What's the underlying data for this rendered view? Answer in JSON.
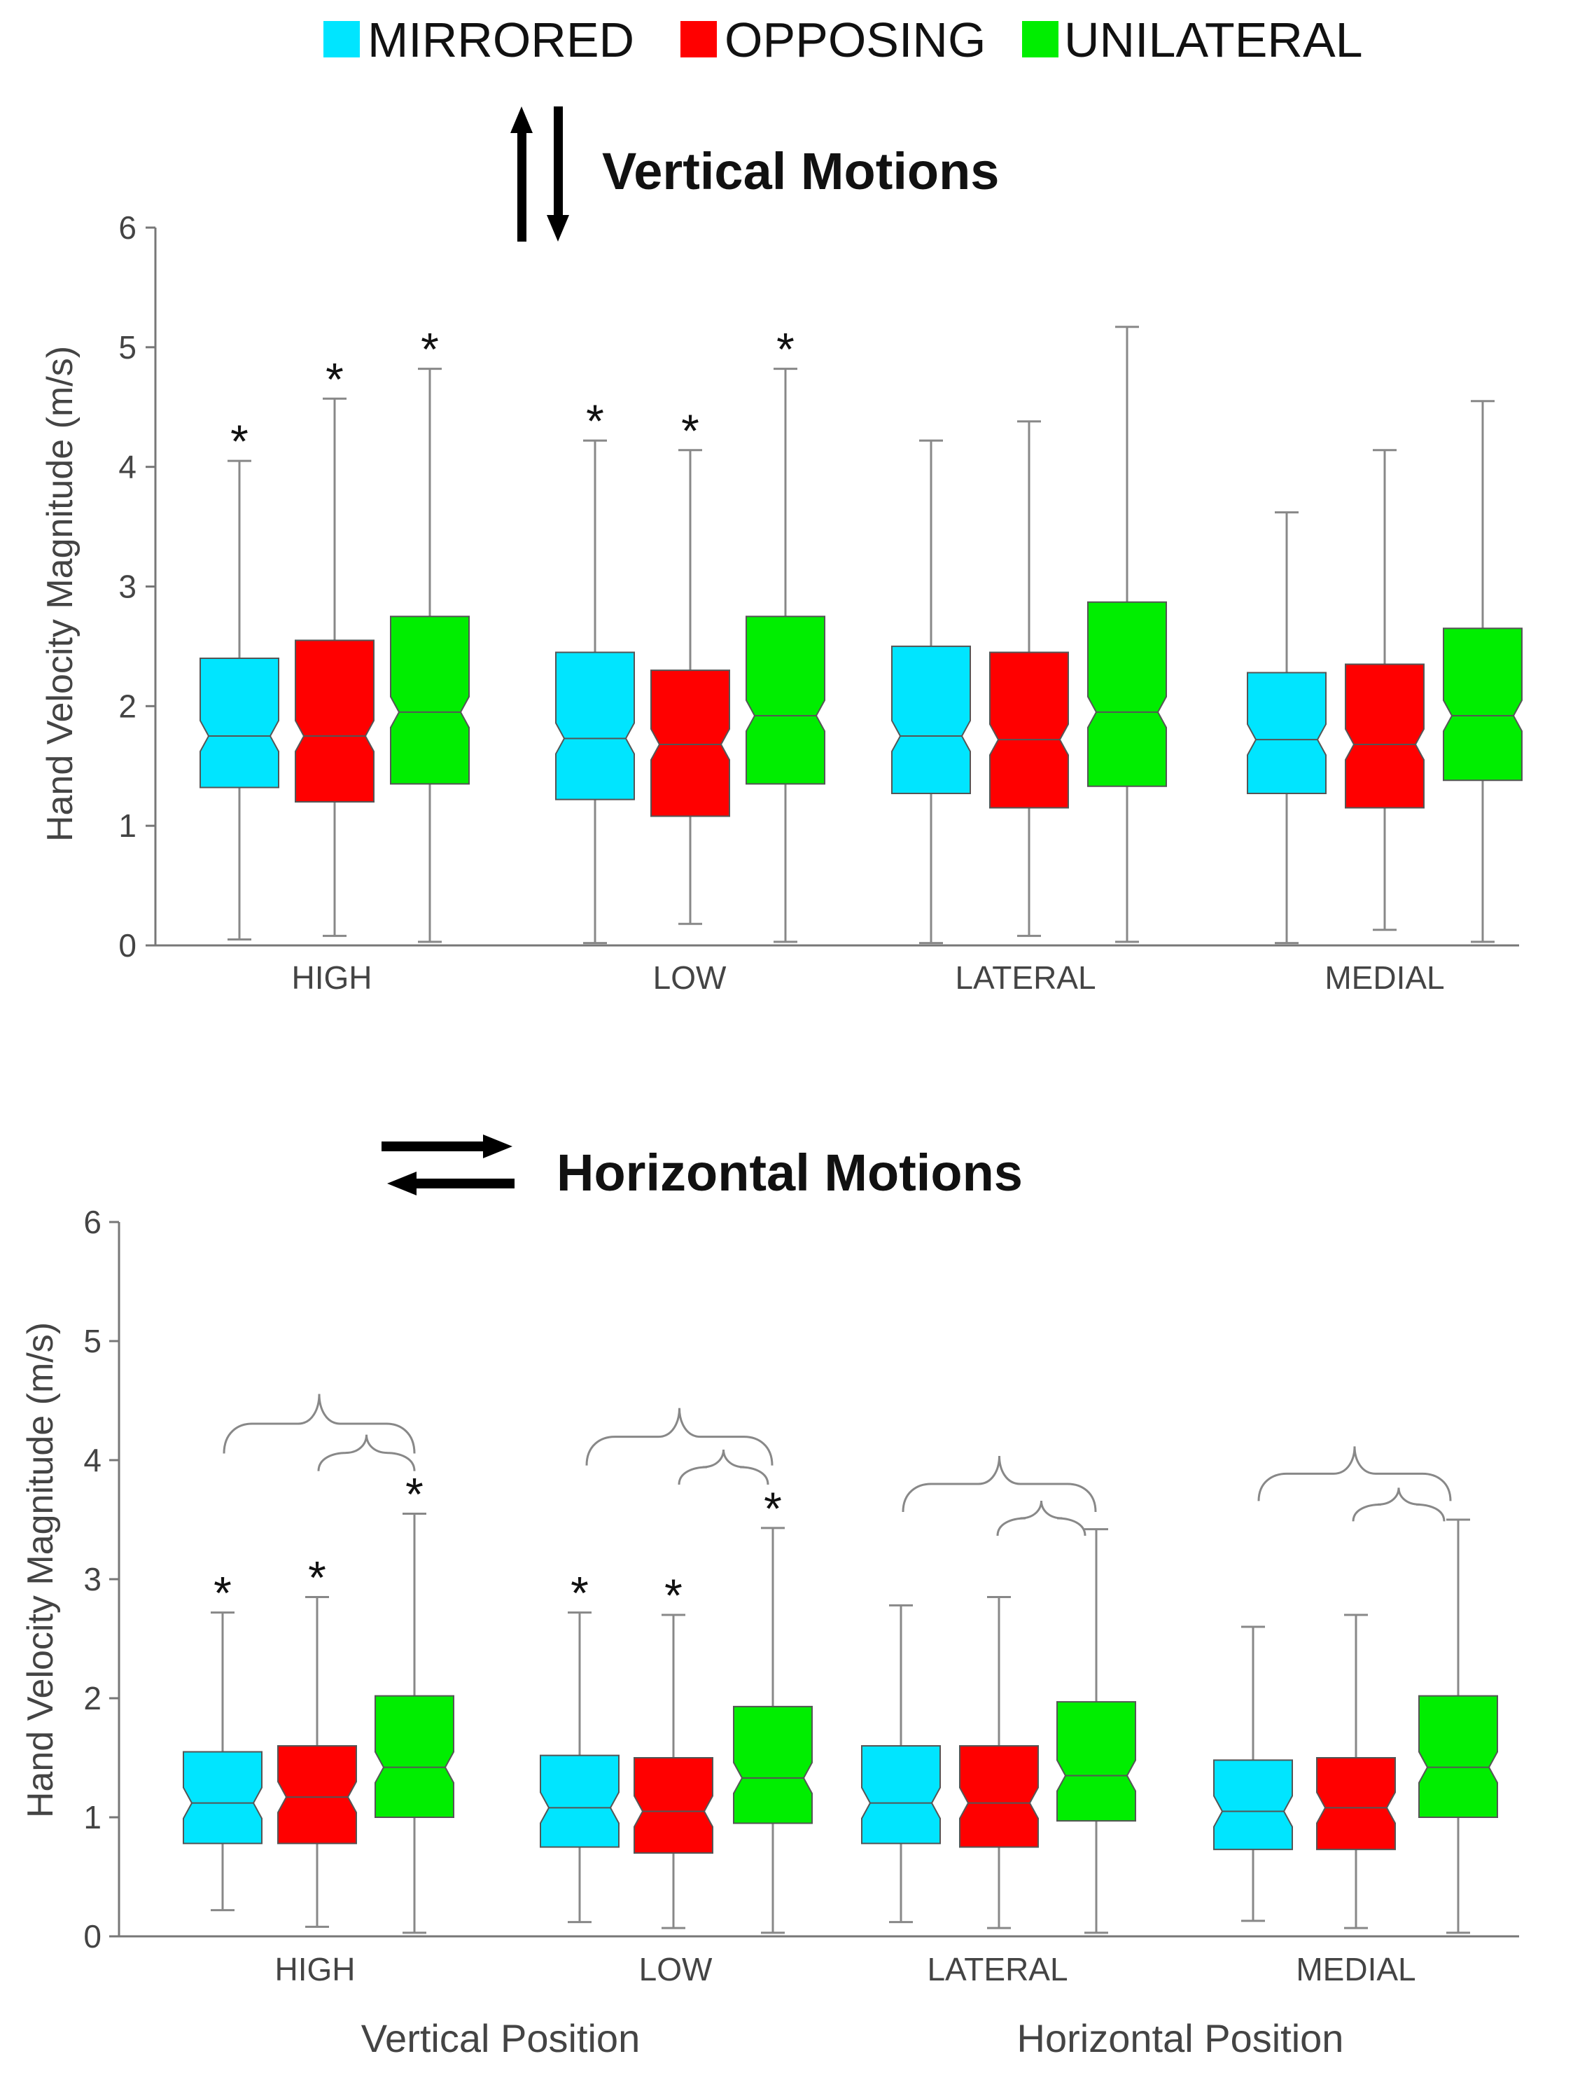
{
  "legend": [
    {
      "label": "MIRRORED",
      "color": "#00e5ff"
    },
    {
      "label": "OPPOSING",
      "color": "#ff0000"
    },
    {
      "label": "UNILATERAL",
      "color": "#00ee00"
    }
  ],
  "x_group_labels": {
    "vertical": "Vertical Position",
    "horizontal": "Horizontal Position"
  },
  "chart_data": [
    {
      "type": "boxplot",
      "title": "Vertical Motions",
      "ylabel": "Hand Velocity Magnitude (m/s)",
      "ylim": [
        0,
        6
      ],
      "yticks": [
        "0",
        "1",
        "2",
        "3",
        "4",
        "5",
        "6"
      ],
      "categories": [
        "HIGH",
        "LOW",
        "LATERAL",
        "MEDIAL"
      ],
      "star_symbol": "*",
      "series": [
        {
          "name": "MIRRORED",
          "boxes": [
            {
              "whislo": 0.05,
              "q1": 1.32,
              "med": 1.75,
              "q3": 2.4,
              "whishi": 4.05,
              "star": true
            },
            {
              "whislo": 0.02,
              "q1": 1.22,
              "med": 1.73,
              "q3": 2.45,
              "whishi": 4.22,
              "star": true
            },
            {
              "whislo": 0.02,
              "q1": 1.27,
              "med": 1.75,
              "q3": 2.5,
              "whishi": 4.22,
              "star": false
            },
            {
              "whislo": 0.02,
              "q1": 1.27,
              "med": 1.72,
              "q3": 2.28,
              "whishi": 3.62,
              "star": false
            }
          ]
        },
        {
          "name": "OPPOSING",
          "boxes": [
            {
              "whislo": 0.08,
              "q1": 1.2,
              "med": 1.75,
              "q3": 2.55,
              "whishi": 4.57,
              "star": true
            },
            {
              "whislo": 0.18,
              "q1": 1.08,
              "med": 1.68,
              "q3": 2.3,
              "whishi": 4.14,
              "star": true
            },
            {
              "whislo": 0.08,
              "q1": 1.15,
              "med": 1.72,
              "q3": 2.45,
              "whishi": 4.38,
              "star": false
            },
            {
              "whislo": 0.13,
              "q1": 1.15,
              "med": 1.68,
              "q3": 2.35,
              "whishi": 4.14,
              "star": false
            }
          ]
        },
        {
          "name": "UNILATERAL",
          "boxes": [
            {
              "whislo": 0.03,
              "q1": 1.35,
              "med": 1.95,
              "q3": 2.75,
              "whishi": 4.82,
              "star": true
            },
            {
              "whislo": 0.03,
              "q1": 1.35,
              "med": 1.92,
              "q3": 2.75,
              "whishi": 4.82,
              "star": true
            },
            {
              "whislo": 0.03,
              "q1": 1.33,
              "med": 1.95,
              "q3": 2.87,
              "whishi": 5.17,
              "star": false
            },
            {
              "whislo": 0.03,
              "q1": 1.38,
              "med": 1.92,
              "q3": 2.65,
              "whishi": 4.55,
              "star": false
            }
          ]
        }
      ]
    },
    {
      "type": "boxplot",
      "title": "Horizontal Motions",
      "ylabel": "Hand Velocity Magnitude (m/s)",
      "ylim": [
        0,
        6
      ],
      "yticks": [
        "0",
        "1",
        "2",
        "3",
        "4",
        "5",
        "6"
      ],
      "categories": [
        "HIGH",
        "LOW",
        "LATERAL",
        "MEDIAL"
      ],
      "star_symbol": "*",
      "series": [
        {
          "name": "MIRRORED",
          "boxes": [
            {
              "whislo": 0.22,
              "q1": 0.78,
              "med": 1.12,
              "q3": 1.55,
              "whishi": 2.72,
              "star": true
            },
            {
              "whislo": 0.12,
              "q1": 0.75,
              "med": 1.08,
              "q3": 1.52,
              "whishi": 2.72,
              "star": true
            },
            {
              "whislo": 0.12,
              "q1": 0.78,
              "med": 1.12,
              "q3": 1.6,
              "whishi": 2.78,
              "star": false
            },
            {
              "whislo": 0.13,
              "q1": 0.73,
              "med": 1.05,
              "q3": 1.48,
              "whishi": 2.6,
              "star": false
            }
          ]
        },
        {
          "name": "OPPOSING",
          "boxes": [
            {
              "whislo": 0.08,
              "q1": 0.78,
              "med": 1.17,
              "q3": 1.6,
              "whishi": 2.85,
              "star": true
            },
            {
              "whislo": 0.07,
              "q1": 0.7,
              "med": 1.05,
              "q3": 1.5,
              "whishi": 2.7,
              "star": true
            },
            {
              "whislo": 0.07,
              "q1": 0.75,
              "med": 1.12,
              "q3": 1.6,
              "whishi": 2.85,
              "star": false
            },
            {
              "whislo": 0.07,
              "q1": 0.73,
              "med": 1.08,
              "q3": 1.5,
              "whishi": 2.7,
              "star": false
            }
          ]
        },
        {
          "name": "UNILATERAL",
          "boxes": [
            {
              "whislo": 0.03,
              "q1": 1.0,
              "med": 1.42,
              "q3": 2.02,
              "whishi": 3.55,
              "star": true
            },
            {
              "whislo": 0.03,
              "q1": 0.95,
              "med": 1.33,
              "q3": 1.93,
              "whishi": 3.43,
              "star": true
            },
            {
              "whislo": 0.03,
              "q1": 0.97,
              "med": 1.35,
              "q3": 1.97,
              "whishi": 3.42,
              "star": false
            },
            {
              "whislo": 0.03,
              "q1": 1.0,
              "med": 1.42,
              "q3": 2.02,
              "whishi": 3.5,
              "star": false
            }
          ]
        }
      ]
    }
  ]
}
